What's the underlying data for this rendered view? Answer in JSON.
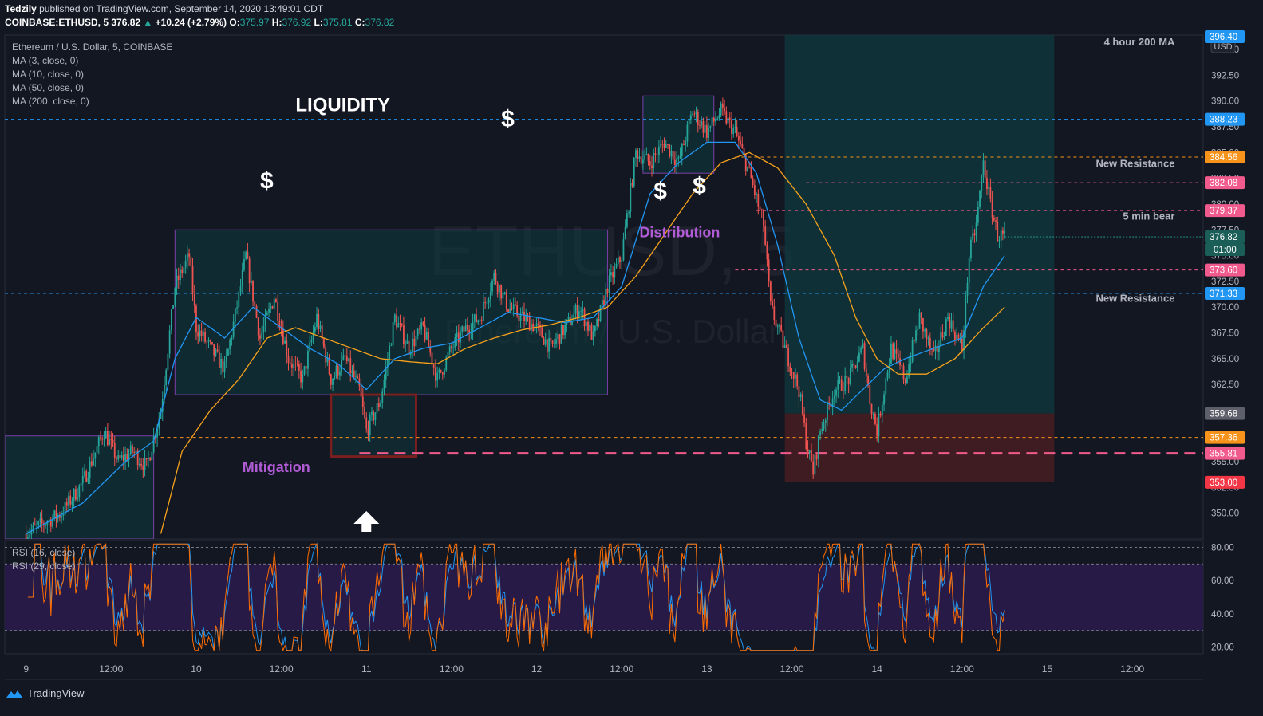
{
  "header": {
    "publisher": "Tedzily",
    "published_text": "published on TradingView.com, September 14, 2020 13:49:01 CDT",
    "symbol": "COINBASE:ETHUSD, 5",
    "last": "376.82",
    "change": "+10.24 (+2.79%)",
    "o_label": "O:",
    "o": "375.97",
    "h_label": "H:",
    "h": "376.92",
    "l_label": "L:",
    "l": "375.81",
    "c_label": "C:",
    "c": "376.82"
  },
  "legend": {
    "title": "Ethereum / U.S. Dollar, 5, COINBASE",
    "ma3": "MA (3, close, 0)",
    "ma10": "MA (10, close, 0)",
    "ma50": "MA (50, close, 0)",
    "ma200": "MA (200, close, 0)",
    "rsi16": "RSI (16, close)",
    "rsi29": "RSI (29, close)"
  },
  "watermark": {
    "symbol": "ETHUSD, 5",
    "name": "Ethereum / U.S. Dollar"
  },
  "footer": {
    "brand": "TradingView"
  },
  "colors": {
    "background": "#131722",
    "up": "#26a69a",
    "down": "#ef5350",
    "ma_fast": "#2196f3",
    "ma_slow": "#f7a21b",
    "rsi1": "#2196f3",
    "rsi2": "#ff6d00",
    "rsi_band": "#2a1b4a",
    "zone_teal": "#0f3a3e",
    "zone_red": "#4a1e22",
    "pink_line": "#f05a8c",
    "orange_line": "#f7931a",
    "blue_line": "#2196f3",
    "annotation_purple": "#b15bd6"
  },
  "chart_data": {
    "type": "candlestick",
    "currency": "USD",
    "y_axis_ticks": [
      350.0,
      352.5,
      355.0,
      357.5,
      360.0,
      362.5,
      365.0,
      367.5,
      370.0,
      372.5,
      375.0,
      377.5,
      380.0,
      382.5,
      385.0,
      387.5,
      390.0,
      392.5,
      395.0
    ],
    "y_axis_tick_labels": [
      "350.00",
      "352.50",
      "355.00",
      "357.50",
      "360.00",
      "362.50",
      "365.00",
      "367.50",
      "370.00",
      "372.50",
      "375.00",
      "377.50",
      "380.00",
      "382.50",
      "385.00",
      "387.50",
      "390.00",
      "392.50",
      "395.00"
    ],
    "ylim": [
      347.5,
      396.4
    ],
    "x_axis_labels": [
      "9",
      "12:00",
      "10",
      "12:00",
      "11",
      "12:00",
      "12",
      "12:00",
      "13",
      "12:00",
      "14",
      "12:00",
      "15",
      "12:00"
    ],
    "x_axis_hours": [
      0,
      12,
      24,
      36,
      48,
      60,
      72,
      84,
      96,
      108,
      120,
      132,
      144,
      156
    ],
    "xlim": [
      -3,
      166
    ],
    "price_path": [
      [
        0,
        348
      ],
      [
        5,
        350
      ],
      [
        8,
        353
      ],
      [
        11,
        358
      ],
      [
        13,
        355
      ],
      [
        15,
        356
      ],
      [
        17,
        354.5
      ],
      [
        19,
        360
      ],
      [
        21,
        372
      ],
      [
        23,
        375
      ],
      [
        24,
        368
      ],
      [
        26,
        366
      ],
      [
        28,
        364
      ],
      [
        30,
        371
      ],
      [
        31,
        375
      ],
      [
        33,
        367
      ],
      [
        35,
        371
      ],
      [
        37,
        365
      ],
      [
        39,
        363
      ],
      [
        41,
        369
      ],
      [
        43,
        363
      ],
      [
        45,
        365
      ],
      [
        47,
        362
      ],
      [
        48,
        358
      ],
      [
        50,
        361
      ],
      [
        52,
        369
      ],
      [
        54,
        366
      ],
      [
        56,
        368
      ],
      [
        58,
        363
      ],
      [
        60,
        366
      ],
      [
        62,
        368
      ],
      [
        64,
        369
      ],
      [
        66,
        373
      ],
      [
        68,
        370
      ],
      [
        70,
        369
      ],
      [
        72,
        368
      ],
      [
        74,
        366
      ],
      [
        76,
        368
      ],
      [
        78,
        370
      ],
      [
        80,
        367
      ],
      [
        82,
        372
      ],
      [
        84,
        375
      ],
      [
        85,
        380
      ],
      [
        86,
        385
      ],
      [
        88,
        384
      ],
      [
        90,
        386
      ],
      [
        92,
        384
      ],
      [
        94,
        389
      ],
      [
        96,
        387
      ],
      [
        98,
        389
      ],
      [
        100,
        387
      ],
      [
        102,
        383
      ],
      [
        104,
        378
      ],
      [
        105,
        370
      ],
      [
        107,
        366
      ],
      [
        109,
        362
      ],
      [
        110,
        357
      ],
      [
        111,
        354
      ],
      [
        112,
        358
      ],
      [
        114,
        362
      ],
      [
        116,
        363
      ],
      [
        118,
        366
      ],
      [
        119,
        361
      ],
      [
        120,
        358
      ],
      [
        122,
        366
      ],
      [
        124,
        363
      ],
      [
        126,
        369
      ],
      [
        128,
        365
      ],
      [
        130,
        369
      ],
      [
        132,
        366
      ],
      [
        133,
        375
      ],
      [
        134,
        378
      ],
      [
        135,
        384
      ],
      [
        136,
        380
      ],
      [
        137,
        377
      ],
      [
        138,
        376.82
      ]
    ],
    "ma_fast_path": [
      [
        0,
        348
      ],
      [
        8,
        351
      ],
      [
        14,
        355
      ],
      [
        18,
        357
      ],
      [
        21,
        365
      ],
      [
        24,
        369
      ],
      [
        28,
        367
      ],
      [
        32,
        370
      ],
      [
        36,
        368
      ],
      [
        40,
        366
      ],
      [
        44,
        364.5
      ],
      [
        48,
        362
      ],
      [
        52,
        365
      ],
      [
        56,
        366
      ],
      [
        60,
        366.5
      ],
      [
        64,
        368
      ],
      [
        68,
        369.5
      ],
      [
        72,
        369
      ],
      [
        76,
        368.5
      ],
      [
        80,
        369
      ],
      [
        84,
        372
      ],
      [
        88,
        381
      ],
      [
        92,
        384
      ],
      [
        96,
        386
      ],
      [
        100,
        386
      ],
      [
        103,
        383
      ],
      [
        106,
        376
      ],
      [
        109,
        367
      ],
      [
        112,
        361
      ],
      [
        115,
        360
      ],
      [
        118,
        362
      ],
      [
        121,
        364
      ],
      [
        124,
        365
      ],
      [
        128,
        366
      ],
      [
        132,
        367
      ],
      [
        135,
        372
      ],
      [
        138,
        375
      ]
    ],
    "ma_slow_path": [
      [
        19,
        348
      ],
      [
        22,
        356
      ],
      [
        26,
        360
      ],
      [
        30,
        363
      ],
      [
        34,
        367
      ],
      [
        38,
        368
      ],
      [
        42,
        367
      ],
      [
        46,
        366
      ],
      [
        50,
        365
      ],
      [
        54,
        364.7
      ],
      [
        58,
        364.5
      ],
      [
        62,
        366
      ],
      [
        66,
        367
      ],
      [
        70,
        367.8
      ],
      [
        74,
        368.3
      ],
      [
        78,
        369
      ],
      [
        82,
        370
      ],
      [
        86,
        373
      ],
      [
        90,
        377
      ],
      [
        94,
        381
      ],
      [
        98,
        384
      ],
      [
        102,
        385
      ],
      [
        106,
        383.5
      ],
      [
        110,
        380
      ],
      [
        114,
        375
      ],
      [
        117,
        369
      ],
      [
        120,
        365
      ],
      [
        123,
        363.5
      ],
      [
        127,
        363.5
      ],
      [
        131,
        365
      ],
      [
        135,
        368
      ],
      [
        138,
        370
      ]
    ],
    "rsi": {
      "ylim": [
        16,
        84
      ],
      "ticks": [
        20,
        40,
        60,
        80
      ],
      "tick_labels": [
        "20.00",
        "40.00",
        "60.00",
        "80.00"
      ],
      "bands": [
        30,
        70
      ],
      "outer": [
        20,
        80
      ]
    },
    "price_labels": [
      {
        "value": 396.4,
        "text": "396.40",
        "color": "#2196f3"
      },
      {
        "value": 388.23,
        "text": "388.23",
        "color": "#2196f3"
      },
      {
        "value": 384.56,
        "text": "384.56",
        "color": "#f7931a"
      },
      {
        "value": 382.08,
        "text": "382.08",
        "color": "#f05a8c"
      },
      {
        "value": 379.37,
        "text": "379.37",
        "color": "#f05a8c"
      },
      {
        "value": 376.82,
        "text": "376.82",
        "color": "#1b5e58",
        "extra": "01:00"
      },
      {
        "value": 373.6,
        "text": "373.60",
        "color": "#f05a8c"
      },
      {
        "value": 371.33,
        "text": "371.33",
        "color": "#2196f3"
      },
      {
        "value": 359.68,
        "text": "359.68",
        "color": "#5d606b"
      },
      {
        "value": 357.36,
        "text": "357.36",
        "color": "#f7931a"
      },
      {
        "value": 355.81,
        "text": "355.81",
        "color": "#f05a8c"
      },
      {
        "value": 353.0,
        "text": "353.00",
        "color": "#f23645"
      }
    ],
    "horizontal_lines": [
      {
        "value": 388.23,
        "color": "#2196f3",
        "from": -3,
        "style": "dash"
      },
      {
        "value": 384.56,
        "color": "#f7931a",
        "from": 100,
        "style": "dash"
      },
      {
        "value": 382.08,
        "color": "#f05a8c",
        "from": 110,
        "style": "dash"
      },
      {
        "value": 379.37,
        "color": "#f05a8c",
        "from": 103,
        "style": "dash"
      },
      {
        "value": 373.6,
        "color": "#f05a8c",
        "from": 100,
        "style": "dash"
      },
      {
        "value": 371.33,
        "color": "#2196f3",
        "from": -3,
        "style": "dash"
      },
      {
        "value": 357.36,
        "color": "#f7931a",
        "from": 19,
        "style": "dash"
      },
      {
        "value": 355.81,
        "color": "#f05a8c",
        "from": 47,
        "style": "bigdash"
      }
    ],
    "zones": [
      {
        "x0": -3,
        "x1": 18,
        "y0": 347.5,
        "y1": 357.5,
        "kind": "teal"
      },
      {
        "x0": 21,
        "x1": 82,
        "y0": 361.5,
        "y1": 377.5,
        "kind": "teal"
      },
      {
        "x0": 43,
        "x1": 55,
        "y0": 355.5,
        "y1": 361.5,
        "kind": "mitigation"
      },
      {
        "x0": 87,
        "x1": 97,
        "y0": 383,
        "y1": 390.5,
        "kind": "teal"
      },
      {
        "x0": 107,
        "x1": 145,
        "y0": 359.68,
        "y1": 396.4,
        "kind": "target"
      },
      {
        "x0": 107,
        "x1": 145,
        "y0": 353.0,
        "y1": 359.68,
        "kind": "stop"
      }
    ],
    "annotations": [
      {
        "text": "LIQUIDITY",
        "x": 38,
        "y": 389,
        "color": "#ffffff",
        "size": 24
      },
      {
        "text": "$",
        "x": 67,
        "y": 387.5,
        "color": "#ffffff",
        "size": 30
      },
      {
        "text": "$",
        "x": 33,
        "y": 381.5,
        "color": "#ffffff",
        "size": 30
      },
      {
        "text": "$",
        "x": 88.5,
        "y": 380.5,
        "color": "#ffffff",
        "size": 30
      },
      {
        "text": "$",
        "x": 94,
        "y": 381,
        "color": "#ffffff",
        "size": 30
      },
      {
        "text": "Distribution",
        "x": 86.5,
        "y": 376.8,
        "color": "#b15bd6",
        "size": 18
      },
      {
        "text": "Mitigation",
        "x": 30.5,
        "y": 354,
        "color": "#b15bd6",
        "size": 18
      },
      {
        "text": "4 hour 200 MA",
        "x": 162,
        "y": 395.4,
        "color": "#b2b5be",
        "size": 13,
        "anchor": "end"
      },
      {
        "text": "New Resistance",
        "x": 162,
        "y": 383.6,
        "color": "#b2b5be",
        "size": 13,
        "anchor": "end"
      },
      {
        "text": "5 min bear",
        "x": 162,
        "y": 378.5,
        "color": "#b2b5be",
        "size": 13,
        "anchor": "end"
      },
      {
        "text": "New Resistance",
        "x": 162,
        "y": 370.5,
        "color": "#b2b5be",
        "size": 13,
        "anchor": "end"
      }
    ]
  }
}
